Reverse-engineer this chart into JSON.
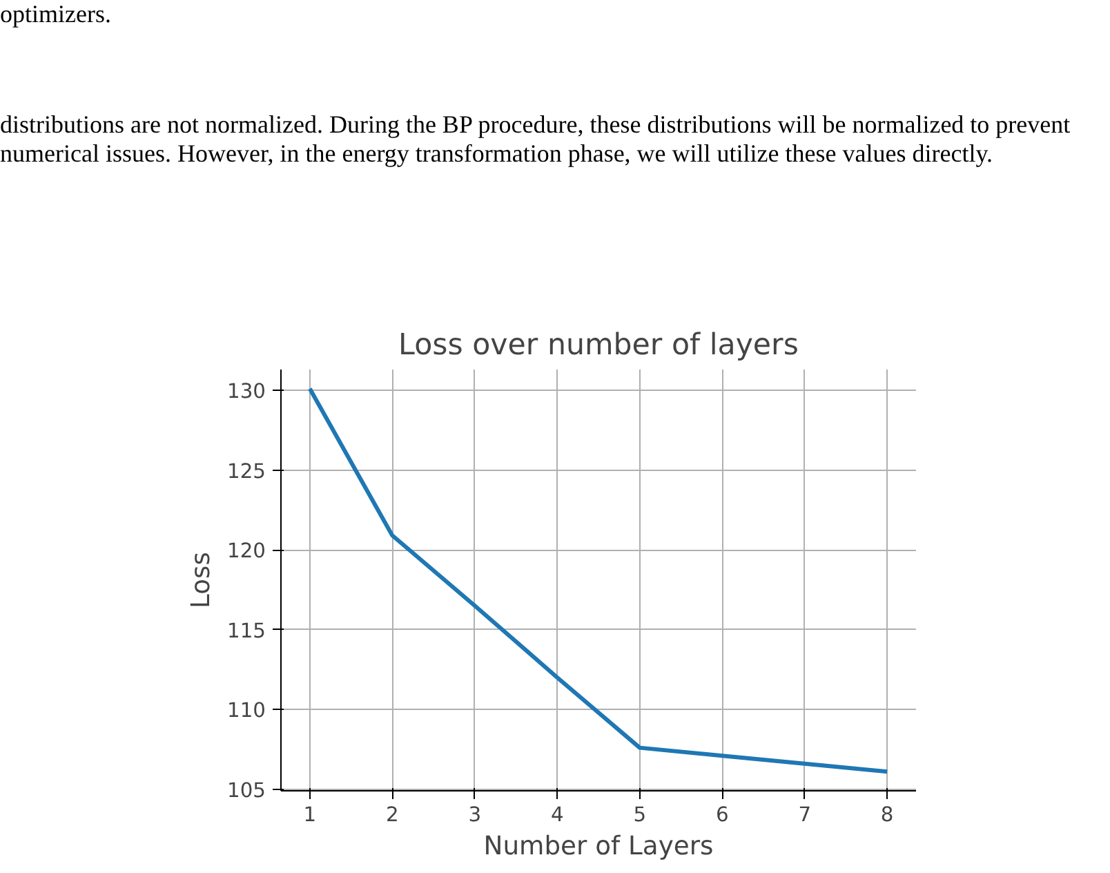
{
  "chart_data": {
    "type": "line",
    "title": "Loss over number of layers",
    "xlabel": "Number of Layers",
    "ylabel": "Loss",
    "annotations": [
      "optimizers.",
      "distributions are not normalized. During the BP procedure, these distributions will be normalized to prevent numerical issues. However, in the energy transformation phase, we will utilize these values directly."
    ],
    "x": [
      1,
      2,
      3,
      4,
      5,
      6,
      7,
      8
    ],
    "series": [
      {
        "color": "#1f77b4",
        "values": [
          130.1,
          120.9,
          116.5,
          112.0,
          107.6,
          107.1,
          106.6,
          106.1
        ]
      }
    ],
    "xlim": [
      0.65,
      8.35
    ],
    "ylim": [
      104.9,
      131.3
    ],
    "xticks": [
      1,
      2,
      3,
      4,
      5,
      6,
      7,
      8
    ],
    "yticks": [
      105,
      110,
      115,
      120,
      125,
      130
    ],
    "grid": true,
    "marker": "none",
    "line_style": "solid"
  }
}
